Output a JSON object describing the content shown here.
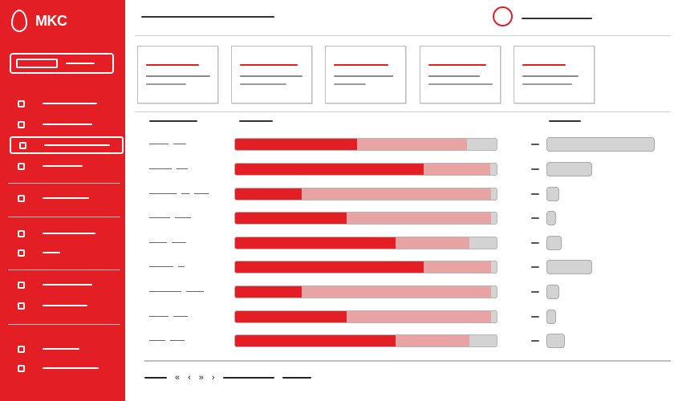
{
  "brand": {
    "name": "MKC"
  },
  "colors": {
    "accent": "#e31e24",
    "accent_light": "#e8a3a3",
    "track": "#d3d3d3"
  },
  "pagination": {
    "prev_all": "«",
    "prev": "‹",
    "next": "›",
    "next_all": "»"
  },
  "rows": [
    {
      "primary": 0.465,
      "secondary": 0.885,
      "mini": 1.0
    },
    {
      "primary": 0.72,
      "secondary": 0.975,
      "mini": 0.42
    },
    {
      "primary": 0.255,
      "secondary": 0.98,
      "mini": 0.12
    },
    {
      "primary": 0.425,
      "secondary": 0.98,
      "mini": 0.08
    },
    {
      "primary": 0.615,
      "secondary": 0.895,
      "mini": 0.14
    },
    {
      "primary": 0.72,
      "secondary": 0.98,
      "mini": 0.42
    },
    {
      "primary": 0.255,
      "secondary": 0.98,
      "mini": 0.12
    },
    {
      "primary": 0.425,
      "secondary": 0.98,
      "mini": 0.06
    },
    {
      "primary": 0.615,
      "secondary": 0.895,
      "mini": 0.17
    }
  ]
}
